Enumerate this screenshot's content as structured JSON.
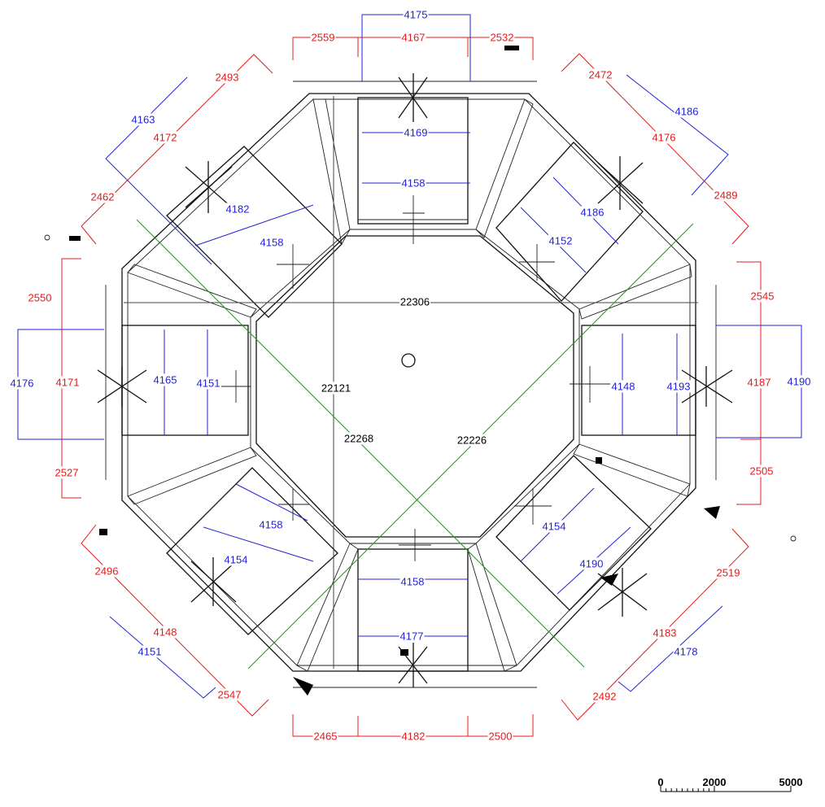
{
  "dimensions": {
    "red": [
      "2559",
      "4167",
      "2532",
      "2493",
      "4172",
      "2472",
      "4176",
      "2462",
      "2489",
      "2550",
      "2545",
      "4171",
      "4187",
      "2527",
      "2505",
      "2496",
      "2519",
      "4148",
      "4183",
      "2547",
      "2492",
      "2465",
      "4182",
      "2500"
    ],
    "blue": [
      "4175",
      "4163",
      "4186",
      "4169",
      "4158",
      "4182",
      "4158",
      "4186",
      "4152",
      "4176",
      "4165",
      "4151",
      "4148",
      "4193",
      "4190",
      "4158",
      "4154",
      "4154",
      "4190",
      "4158",
      "4177",
      "4151",
      "4178"
    ],
    "black": [
      "22306",
      "22121",
      "22268",
      "22226"
    ]
  },
  "scale_bar": {
    "labels": [
      "0",
      "2000",
      "5000"
    ]
  },
  "colors": {
    "red": "#e31b1b",
    "blue": "#2323d6",
    "green": "#2e8b2e",
    "black": "#000000"
  }
}
